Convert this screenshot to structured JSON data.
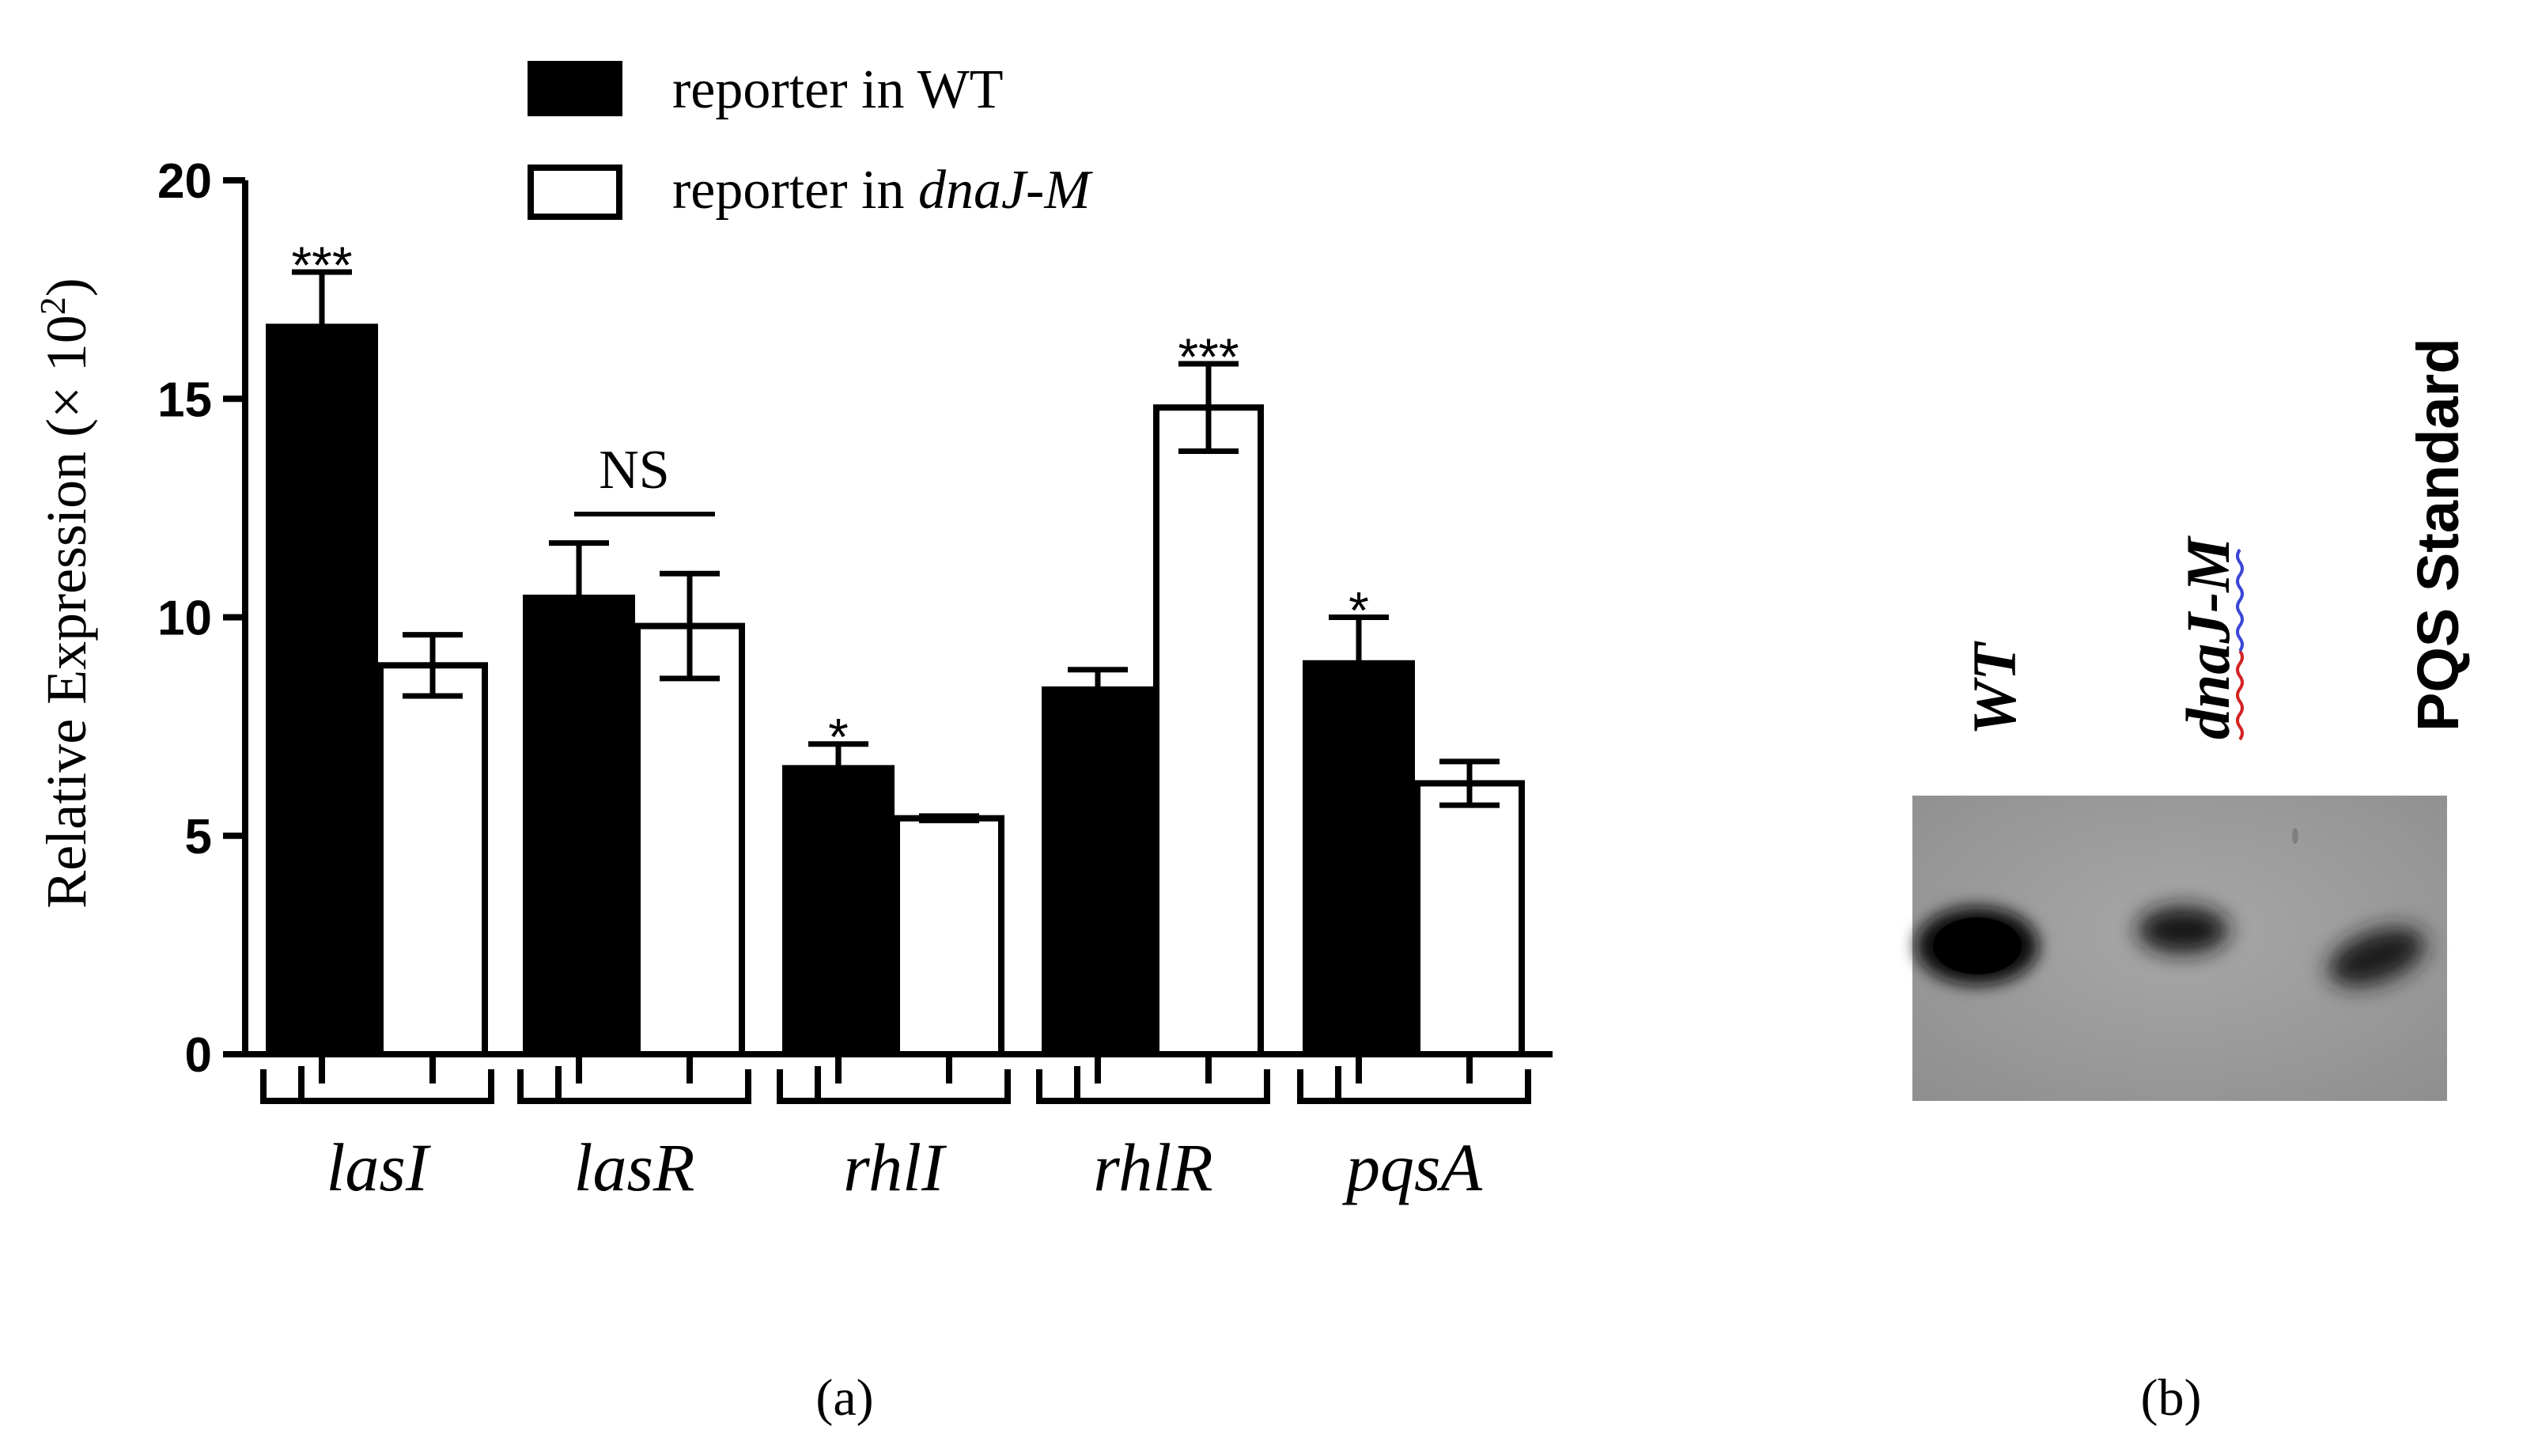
{
  "chart_data": [
    {
      "type": "bar",
      "panel_label": "(a)",
      "title": "",
      "xlabel": "",
      "ylabel": "Relative Expression (× 10",
      "ylabel_exponent": "2",
      "ylabel_tail": ")",
      "ylim": [
        0,
        20
      ],
      "yticks": [
        0,
        5,
        10,
        15,
        20
      ],
      "grid": false,
      "legend_position": "top",
      "categories": [
        "lasI",
        "lasR",
        "rhlI",
        "rhlR",
        "pqsA"
      ],
      "series": [
        {
          "name": "reporter in WT",
          "legend_prefix": "reporter in",
          "legend_suffix": "WT",
          "fill": "#000000",
          "values": [
            16.7,
            10.5,
            6.6,
            8.4,
            9.0
          ],
          "errors": [
            1.2,
            1.2,
            0.5,
            0.4,
            1.0
          ]
        },
        {
          "name": "reporter in dnaJ-M",
          "legend_prefix": "reporter in",
          "legend_suffix": "dnaJ-M",
          "fill": "#ffffff",
          "values": [
            8.9,
            9.8,
            5.4,
            14.8,
            6.2
          ],
          "errors": [
            0.7,
            1.2,
            0.05,
            1.0,
            0.5
          ]
        }
      ],
      "significance": [
        "***",
        "NS",
        "*",
        "***",
        "*"
      ]
    },
    {
      "type": "image",
      "panel_label": "(b)",
      "lanes": [
        "WT",
        "dnaJ-M",
        "PQS Standard"
      ],
      "colors": {
        "gel_background": "#9a9a9a",
        "spot": "#101010",
        "underline_red": "#d22323",
        "underline_blue": "#3a46d6"
      }
    }
  ]
}
